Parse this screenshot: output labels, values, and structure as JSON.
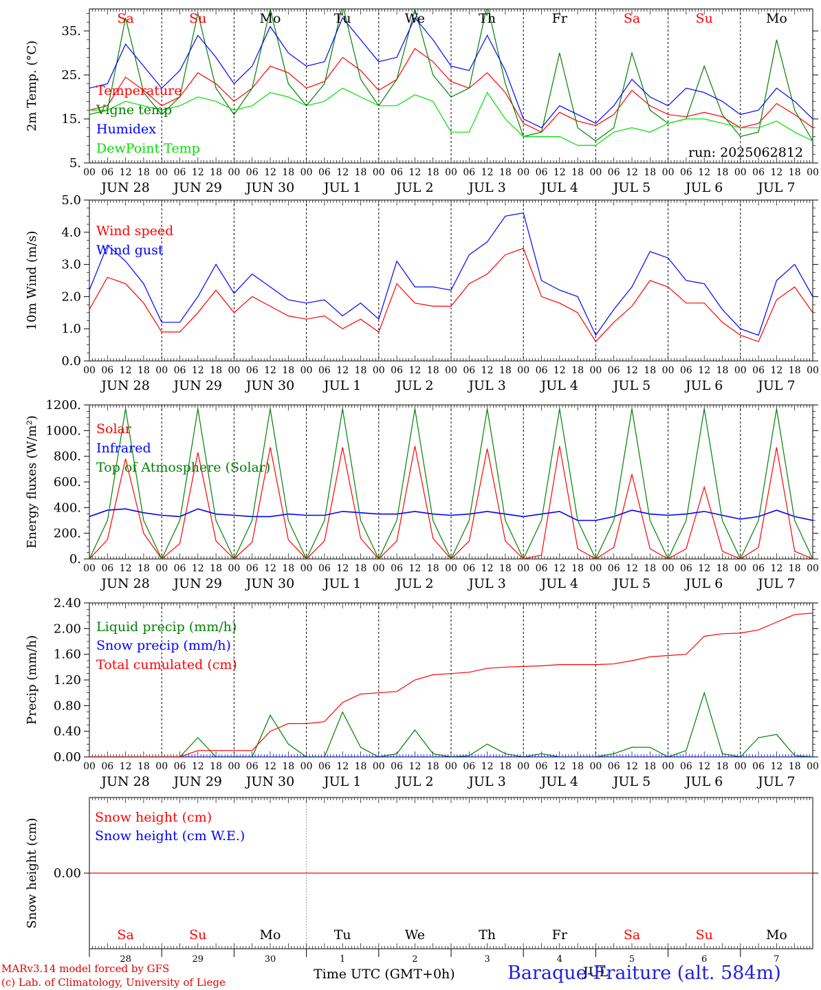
{
  "chart_data": [
    {
      "type": "line",
      "ylabel": "2m Temp. (°C)",
      "yticks": [
        "5.",
        "15.",
        "25.",
        "35."
      ],
      "ylim": [
        5,
        40
      ],
      "x": [
        "2025-06-28T00",
        "2025-06-28T06",
        "2025-06-28T12",
        "2025-06-28T18",
        "2025-06-29T00",
        "2025-06-29T06",
        "2025-06-29T12",
        "2025-06-29T18",
        "2025-06-30T00",
        "2025-06-30T06",
        "2025-06-30T12",
        "2025-06-30T18",
        "2025-07-01T00",
        "2025-07-01T06",
        "2025-07-01T12",
        "2025-07-01T18",
        "2025-07-02T00",
        "2025-07-02T06",
        "2025-07-02T12",
        "2025-07-02T18",
        "2025-07-03T00",
        "2025-07-03T06",
        "2025-07-03T12",
        "2025-07-03T18",
        "2025-07-04T00",
        "2025-07-04T06",
        "2025-07-04T12",
        "2025-07-04T18",
        "2025-07-05T00",
        "2025-07-05T06",
        "2025-07-05T12",
        "2025-07-05T18",
        "2025-07-06T00",
        "2025-07-06T06",
        "2025-07-06T12",
        "2025-07-06T18",
        "2025-07-07T00",
        "2025-07-07T06",
        "2025-07-07T12",
        "2025-07-07T18",
        "2025-07-08T00"
      ],
      "series": [
        {
          "name": "Temperature",
          "color": "#ff0000",
          "values": [
            17,
            18,
            24.5,
            21.5,
            18,
            20,
            25.5,
            23,
            19,
            22,
            27,
            25.5,
            22,
            23.5,
            29,
            26,
            21.5,
            24,
            31,
            28,
            23.5,
            22,
            25.5,
            21,
            14,
            12,
            16.5,
            14.5,
            13.5,
            16,
            21.5,
            18,
            16,
            15.5,
            16.5,
            15.5,
            13,
            14,
            18.5,
            16,
            13
          ]
        },
        {
          "name": "Vigne temp",
          "color": "#008000",
          "values": [
            16,
            17,
            38,
            21,
            16,
            20,
            39,
            22,
            16,
            22,
            40,
            23,
            18,
            23,
            41,
            24,
            18,
            24,
            40,
            25,
            20,
            22,
            41,
            23,
            11,
            12,
            30,
            13,
            10,
            13,
            30,
            17,
            14,
            15,
            27,
            16,
            11,
            12,
            33,
            17,
            10
          ]
        },
        {
          "name": "Humidex",
          "color": "#0000ff",
          "values": [
            22,
            23,
            32,
            27,
            22,
            26,
            34,
            29,
            23,
            27,
            36,
            30,
            27,
            28,
            38,
            33,
            28,
            29,
            38,
            33,
            27,
            26,
            34,
            26,
            15,
            13,
            18,
            16,
            14,
            18,
            24,
            20,
            18,
            22,
            21,
            19,
            16,
            17,
            22,
            19,
            15
          ]
        },
        {
          "name": "DewPoint Temp",
          "color": "#00e000",
          "values": [
            17,
            17,
            19,
            18,
            17,
            18,
            20,
            19,
            17,
            18,
            21,
            20,
            18,
            19,
            22,
            20,
            18,
            18,
            20.5,
            19,
            12,
            12,
            21,
            15,
            11,
            11,
            11,
            9,
            9,
            12,
            13,
            12,
            14,
            15,
            15,
            14,
            13,
            13,
            14.5,
            12,
            10
          ]
        }
      ],
      "annotations": [
        "run: 2025062812"
      ]
    },
    {
      "type": "line",
      "ylabel": "10m Wind (m/s)",
      "yticks": [
        "0.0",
        "1.0",
        "2.0",
        "3.0",
        "4.0",
        "5.0"
      ],
      "ylim": [
        0,
        5
      ],
      "x": [
        "2025-06-28T00",
        "2025-06-28T06",
        "2025-06-28T12",
        "2025-06-28T18",
        "2025-06-29T00",
        "2025-06-29T06",
        "2025-06-29T12",
        "2025-06-29T18",
        "2025-06-30T00",
        "2025-06-30T06",
        "2025-06-30T12",
        "2025-06-30T18",
        "2025-07-01T00",
        "2025-07-01T06",
        "2025-07-01T12",
        "2025-07-01T18",
        "2025-07-02T00",
        "2025-07-02T06",
        "2025-07-02T12",
        "2025-07-02T18",
        "2025-07-03T00",
        "2025-07-03T06",
        "2025-07-03T12",
        "2025-07-03T18",
        "2025-07-04T00",
        "2025-07-04T06",
        "2025-07-04T12",
        "2025-07-04T18",
        "2025-07-05T00",
        "2025-07-05T06",
        "2025-07-05T12",
        "2025-07-05T18",
        "2025-07-06T00",
        "2025-07-06T06",
        "2025-07-06T12",
        "2025-07-06T18",
        "2025-07-07T00",
        "2025-07-07T06",
        "2025-07-07T12",
        "2025-07-07T18",
        "2025-07-08T00"
      ],
      "series": [
        {
          "name": "Wind speed",
          "color": "#ff0000",
          "values": [
            1.6,
            2.6,
            2.4,
            1.8,
            0.9,
            0.9,
            1.5,
            2.2,
            1.5,
            2.0,
            1.7,
            1.4,
            1.3,
            1.4,
            1.0,
            1.3,
            0.9,
            2.4,
            1.8,
            1.7,
            1.7,
            2.4,
            2.7,
            3.3,
            3.5,
            2.0,
            1.8,
            1.5,
            0.6,
            1.2,
            1.7,
            2.5,
            2.3,
            1.8,
            1.8,
            1.2,
            0.8,
            0.6,
            1.9,
            2.3,
            1.5
          ]
        },
        {
          "name": "Wind gust",
          "color": "#0000ff",
          "values": [
            2.2,
            3.6,
            3.1,
            2.4,
            1.2,
            1.2,
            2.0,
            3.0,
            2.1,
            2.7,
            2.3,
            1.9,
            1.8,
            1.9,
            1.4,
            1.8,
            1.3,
            3.1,
            2.3,
            2.3,
            2.2,
            3.3,
            3.7,
            4.5,
            4.6,
            2.5,
            2.2,
            2.0,
            0.8,
            1.6,
            2.3,
            3.4,
            3.2,
            2.5,
            2.4,
            1.6,
            1.0,
            0.8,
            2.5,
            3.0,
            2.0
          ]
        }
      ]
    },
    {
      "type": "line",
      "ylabel": "Energy fluxes (W/m²)",
      "yticks": [
        "0.",
        "200.",
        "400.",
        "600.",
        "800.",
        "1000.",
        "1200."
      ],
      "ylim": [
        0,
        1200
      ],
      "x": [
        "2025-06-28T00",
        "2025-06-28T06",
        "2025-06-28T12",
        "2025-06-28T18",
        "2025-06-29T00",
        "2025-06-29T06",
        "2025-06-29T12",
        "2025-06-29T18",
        "2025-06-30T00",
        "2025-06-30T06",
        "2025-06-30T12",
        "2025-06-30T18",
        "2025-07-01T00",
        "2025-07-01T06",
        "2025-07-01T12",
        "2025-07-01T18",
        "2025-07-02T00",
        "2025-07-02T06",
        "2025-07-02T12",
        "2025-07-02T18",
        "2025-07-03T00",
        "2025-07-03T06",
        "2025-07-03T12",
        "2025-07-03T18",
        "2025-07-04T00",
        "2025-07-04T06",
        "2025-07-04T12",
        "2025-07-04T18",
        "2025-07-05T00",
        "2025-07-05T06",
        "2025-07-05T12",
        "2025-07-05T18",
        "2025-07-06T00",
        "2025-07-06T06",
        "2025-07-06T12",
        "2025-07-06T18",
        "2025-07-07T00",
        "2025-07-07T06",
        "2025-07-07T12",
        "2025-07-07T18",
        "2025-07-08T00"
      ],
      "series": [
        {
          "name": "Solar",
          "color": "#ff0000",
          "values": [
            0,
            150,
            780,
            200,
            0,
            120,
            830,
            140,
            0,
            130,
            870,
            150,
            0,
            140,
            870,
            160,
            0,
            140,
            880,
            160,
            0,
            140,
            860,
            140,
            0,
            30,
            880,
            80,
            0,
            90,
            660,
            80,
            0,
            80,
            560,
            60,
            0,
            90,
            870,
            60,
            0
          ]
        },
        {
          "name": "Infrared",
          "color": "#0000ff",
          "values": [
            330,
            380,
            390,
            360,
            340,
            330,
            390,
            350,
            340,
            330,
            330,
            350,
            340,
            340,
            370,
            360,
            350,
            350,
            370,
            350,
            340,
            350,
            370,
            350,
            330,
            350,
            370,
            300,
            300,
            330,
            380,
            350,
            340,
            350,
            370,
            340,
            310,
            330,
            380,
            330,
            300
          ]
        },
        {
          "name": "Top of Atmosphere (Solar)",
          "color": "#008000",
          "values": [
            0,
            300,
            1170,
            300,
            0,
            300,
            1170,
            300,
            0,
            300,
            1170,
            300,
            0,
            300,
            1170,
            300,
            0,
            300,
            1170,
            300,
            0,
            300,
            1170,
            300,
            0,
            300,
            1170,
            300,
            0,
            300,
            1170,
            300,
            0,
            300,
            1170,
            300,
            0,
            300,
            1170,
            300,
            0
          ]
        }
      ]
    },
    {
      "type": "line",
      "ylabel": "Precip (mm/h)",
      "yticks": [
        "0.00",
        "0.40",
        "0.80",
        "1.20",
        "1.60",
        "2.00",
        "2.40"
      ],
      "ylim": [
        0,
        2.4
      ],
      "x": [
        "2025-06-28T00",
        "2025-06-28T06",
        "2025-06-28T12",
        "2025-06-28T18",
        "2025-06-29T00",
        "2025-06-29T06",
        "2025-06-29T12",
        "2025-06-29T18",
        "2025-06-30T00",
        "2025-06-30T06",
        "2025-06-30T12",
        "2025-06-30T18",
        "2025-07-01T00",
        "2025-07-01T06",
        "2025-07-01T12",
        "2025-07-01T18",
        "2025-07-02T00",
        "2025-07-02T06",
        "2025-07-02T12",
        "2025-07-02T18",
        "2025-07-03T00",
        "2025-07-03T06",
        "2025-07-03T12",
        "2025-07-03T18",
        "2025-07-04T00",
        "2025-07-04T06",
        "2025-07-04T12",
        "2025-07-04T18",
        "2025-07-05T00",
        "2025-07-05T06",
        "2025-07-05T12",
        "2025-07-05T18",
        "2025-07-06T00",
        "2025-07-06T06",
        "2025-07-06T12",
        "2025-07-06T18",
        "2025-07-07T00",
        "2025-07-07T06",
        "2025-07-07T12",
        "2025-07-07T18",
        "2025-07-08T00"
      ],
      "series": [
        {
          "name": "Liquid precip (mm/h)",
          "color": "#008000",
          "values": [
            0,
            0,
            0,
            0,
            0,
            0,
            0.3,
            0,
            0,
            0,
            0.65,
            0.2,
            0,
            0,
            0.7,
            0.15,
            0,
            0.05,
            0.42,
            0.05,
            0,
            0.02,
            0.2,
            0.05,
            0,
            0.05,
            0,
            0,
            0,
            0.05,
            0.15,
            0.15,
            0,
            0.1,
            1.0,
            0.05,
            0,
            0.3,
            0.35,
            0.02,
            0
          ]
        },
        {
          "name": "Snow precip (mm/h)",
          "color": "#0000ff",
          "values": [
            0,
            0,
            0,
            0,
            0,
            0,
            0,
            0,
            0,
            0,
            0,
            0,
            0,
            0,
            0,
            0,
            0,
            0,
            0,
            0,
            0,
            0,
            0,
            0,
            0,
            0,
            0,
            0,
            0,
            0,
            0,
            0,
            0,
            0,
            0,
            0,
            0,
            0,
            0,
            0,
            0
          ]
        },
        {
          "name": "Total cumulated (cm)",
          "color": "#ff0000",
          "values": [
            0,
            0,
            0,
            0,
            0,
            0,
            0.1,
            0.1,
            0.1,
            0.1,
            0.4,
            0.52,
            0.52,
            0.55,
            0.85,
            0.98,
            1.0,
            1.02,
            1.2,
            1.28,
            1.3,
            1.32,
            1.38,
            1.4,
            1.41,
            1.42,
            1.44,
            1.44,
            1.44,
            1.45,
            1.5,
            1.56,
            1.58,
            1.6,
            1.88,
            1.92,
            1.93,
            1.98,
            2.1,
            2.22,
            2.24
          ]
        }
      ]
    },
    {
      "type": "line",
      "ylabel": "Snow height (cm)",
      "yticks": [
        "0.00"
      ],
      "ylim": [
        -1,
        1
      ],
      "x": [
        "2025-06-28T00",
        "2025-07-08T00"
      ],
      "series": [
        {
          "name": "Snow height (cm)",
          "color": "#ff0000",
          "values": [
            0,
            0
          ]
        },
        {
          "name": "Snow height (cm W.E.)",
          "color": "#0000ff",
          "values": [
            0,
            0
          ]
        }
      ]
    }
  ],
  "axes": {
    "hour_ticks": [
      "00",
      "06",
      "12",
      "18"
    ],
    "date_labels": [
      "JUN 28",
      "JUN 29",
      "JUN 30",
      "JUL  1",
      "JUL  2",
      "JUL  3",
      "JUL  4",
      "JUL  5",
      "JUL  6",
      "JUL  7"
    ],
    "weekdays": [
      "Sa",
      "Su",
      "Mo",
      "Tu",
      "We",
      "Th",
      "Fr",
      "Sa",
      "Su",
      "Mo"
    ],
    "weekday_colors": [
      "#ff0000",
      "#ff0000",
      "#000000",
      "#000000",
      "#000000",
      "#000000",
      "#000000",
      "#ff0000",
      "#ff0000",
      "#000000"
    ],
    "bottom_day_numbers": [
      "28",
      "29",
      "30",
      "1",
      "2",
      "3",
      "4",
      "5",
      "6",
      "7"
    ],
    "bottom_month": "JUL"
  },
  "footer": {
    "credit_line1": "MARv3.14 model forced by GFS",
    "credit_line2": "(c) Lab. of Climatology, University of Liege",
    "x_title": "Time UTC (GMT+0h)",
    "station": "Baraque-Fraiture (alt. 584m)"
  }
}
